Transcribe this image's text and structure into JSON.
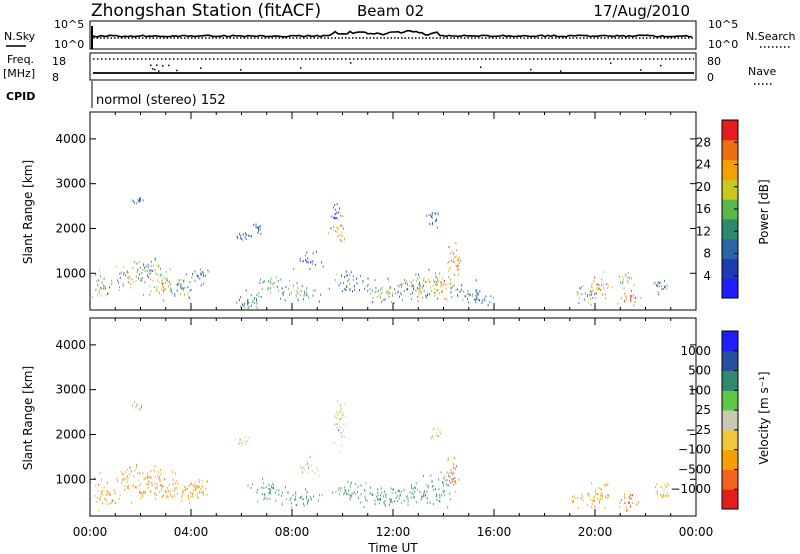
{
  "header": {
    "station": "Zhongshan Station (fitACF)",
    "beam": "Beam 02",
    "date": "17/Aug/2010"
  },
  "strips": {
    "nsky_label": "N.Sky",
    "nsky_top": "10^5",
    "nsky_bottom": "10^0",
    "nsearch_label": "N.Search",
    "nsearch_top": "10^5",
    "nsearch_bottom": "10^0",
    "freq_label": "Freq.",
    "freq_unit": "[MHz]",
    "freq_top": "18",
    "freq_bottom": "8",
    "nave_label": "Nave",
    "nave_top": "80",
    "nave_bottom": "0",
    "cpid_label": "CPID",
    "cpid_text": "normol (stereo) 152"
  },
  "colors": {
    "power": [
      "#1e1eff",
      "#1e3cb4",
      "#2c64a8",
      "#2e8a6e",
      "#58b84a",
      "#c8c81e",
      "#f5a000",
      "#ee6e14",
      "#e41e1e"
    ],
    "velocity": [
      "#e41e1e",
      "#f0641e",
      "#f5a000",
      "#f0c83c",
      "#c8c8b4",
      "#5ec846",
      "#2e8a6e",
      "#2850a0",
      "#1e1eff"
    ]
  },
  "chart_data": [
    {
      "type": "heatmap",
      "name": "power",
      "xlabel": "",
      "ylabel": "Slant Range [km]",
      "yticks": [
        "1000",
        "2000",
        "3000",
        "4000"
      ],
      "ylim": [
        180,
        4600
      ],
      "xlim": [
        0,
        24
      ],
      "colorbar_label": "Power [dB]",
      "colorbar_ticks": [
        "4",
        "8",
        "12",
        "16",
        "20",
        "24",
        "28"
      ],
      "clim": [
        0,
        32
      ],
      "blobs": [
        {
          "t": 0.5,
          "r": 650,
          "dt": 0.4,
          "dr": 250,
          "v": 14
        },
        {
          "t": 1.6,
          "r": 900,
          "dt": 0.6,
          "dr": 300,
          "v": 16
        },
        {
          "t": 2.3,
          "r": 1100,
          "dt": 0.5,
          "dr": 250,
          "v": 10
        },
        {
          "t": 2.8,
          "r": 850,
          "dt": 0.5,
          "dr": 350,
          "v": 20
        },
        {
          "t": 3.6,
          "r": 650,
          "dt": 0.7,
          "dr": 250,
          "v": 12
        },
        {
          "t": 4.3,
          "r": 900,
          "dt": 0.4,
          "dr": 200,
          "v": 8
        },
        {
          "t": 1.9,
          "r": 2600,
          "dt": 0.2,
          "dr": 100,
          "v": 6
        },
        {
          "t": 6.2,
          "r": 350,
          "dt": 0.7,
          "dr": 180,
          "v": 10
        },
        {
          "t": 6.0,
          "r": 1800,
          "dt": 0.3,
          "dr": 100,
          "v": 6
        },
        {
          "t": 6.6,
          "r": 2000,
          "dt": 0.2,
          "dr": 150,
          "v": 8
        },
        {
          "t": 7.2,
          "r": 700,
          "dt": 0.6,
          "dr": 200,
          "v": 14
        },
        {
          "t": 8.3,
          "r": 550,
          "dt": 0.8,
          "dr": 200,
          "v": 12
        },
        {
          "t": 8.7,
          "r": 1250,
          "dt": 0.5,
          "dr": 150,
          "v": 6
        },
        {
          "t": 9.8,
          "r": 1950,
          "dt": 0.3,
          "dr": 300,
          "v": 20
        },
        {
          "t": 9.7,
          "r": 2400,
          "dt": 0.15,
          "dr": 200,
          "v": 6
        },
        {
          "t": 10.3,
          "r": 800,
          "dt": 0.7,
          "dr": 250,
          "v": 10
        },
        {
          "t": 11.5,
          "r": 550,
          "dt": 0.9,
          "dr": 250,
          "v": 14
        },
        {
          "t": 12.6,
          "r": 650,
          "dt": 0.6,
          "dr": 250,
          "v": 12
        },
        {
          "t": 13.2,
          "r": 700,
          "dt": 0.5,
          "dr": 300,
          "v": 16
        },
        {
          "t": 13.9,
          "r": 700,
          "dt": 0.5,
          "dr": 350,
          "v": 22
        },
        {
          "t": 14.4,
          "r": 1200,
          "dt": 0.3,
          "dr": 400,
          "v": 24
        },
        {
          "t": 14.8,
          "r": 550,
          "dt": 0.6,
          "dr": 200,
          "v": 10
        },
        {
          "t": 13.6,
          "r": 2200,
          "dt": 0.25,
          "dr": 200,
          "v": 6
        },
        {
          "t": 15.5,
          "r": 450,
          "dt": 0.5,
          "dr": 150,
          "v": 8
        },
        {
          "t": 19.6,
          "r": 450,
          "dt": 0.5,
          "dr": 200,
          "v": 16
        },
        {
          "t": 20.2,
          "r": 650,
          "dt": 0.5,
          "dr": 250,
          "v": 24
        },
        {
          "t": 21.3,
          "r": 450,
          "dt": 0.4,
          "dr": 200,
          "v": 28
        },
        {
          "t": 21.2,
          "r": 850,
          "dt": 0.3,
          "dr": 150,
          "v": 18
        },
        {
          "t": 22.6,
          "r": 700,
          "dt": 0.3,
          "dr": 200,
          "v": 12
        }
      ]
    },
    {
      "type": "heatmap",
      "name": "velocity",
      "xlabel": "Time UT",
      "ylabel": "Slant Range [km]",
      "yticks": [
        "1000",
        "2000",
        "3000",
        "4000"
      ],
      "xticks": [
        "00:00",
        "04:00",
        "08:00",
        "12:00",
        "16:00",
        "20:00",
        "00:00"
      ],
      "ylim": [
        180,
        4600
      ],
      "xlim": [
        0,
        24
      ],
      "colorbar_label": "Velocity [m s⁻¹]",
      "colorbar_ticks": [
        "1000",
        "500",
        "100",
        "25",
        "−25",
        "−100",
        "−500",
        "−1000"
      ],
      "blobs": [
        {
          "t": 0.6,
          "r": 650,
          "dt": 0.6,
          "dr": 300,
          "v": -400
        },
        {
          "t": 1.7,
          "r": 900,
          "dt": 0.8,
          "dr": 350,
          "v": -300
        },
        {
          "t": 2.8,
          "r": 850,
          "dt": 0.8,
          "dr": 400,
          "v": -400
        },
        {
          "t": 3.8,
          "r": 650,
          "dt": 0.8,
          "dr": 250,
          "v": -300
        },
        {
          "t": 4.4,
          "r": 800,
          "dt": 0.4,
          "dr": 200,
          "v": -200
        },
        {
          "t": 1.9,
          "r": 2600,
          "dt": 0.2,
          "dr": 100,
          "v": 0
        },
        {
          "t": 6.0,
          "r": 1800,
          "dt": 0.3,
          "dr": 100,
          "v": 0
        },
        {
          "t": 7.1,
          "r": 700,
          "dt": 0.7,
          "dr": 250,
          "v": 200
        },
        {
          "t": 8.3,
          "r": 550,
          "dt": 0.9,
          "dr": 200,
          "v": 150
        },
        {
          "t": 8.6,
          "r": 1250,
          "dt": 0.4,
          "dr": 150,
          "v": 0
        },
        {
          "t": 9.9,
          "r": 2200,
          "dt": 0.3,
          "dr": 500,
          "v": 0
        },
        {
          "t": 10.4,
          "r": 700,
          "dt": 0.8,
          "dr": 200,
          "v": 200
        },
        {
          "t": 11.6,
          "r": 550,
          "dt": 1.0,
          "dr": 250,
          "v": 300
        },
        {
          "t": 12.8,
          "r": 600,
          "dt": 0.7,
          "dr": 250,
          "v": 250
        },
        {
          "t": 13.8,
          "r": 750,
          "dt": 0.6,
          "dr": 350,
          "v": 200
        },
        {
          "t": 14.3,
          "r": 1100,
          "dt": 0.3,
          "dr": 400,
          "v": -700
        },
        {
          "t": 13.7,
          "r": 2000,
          "dt": 0.25,
          "dr": 150,
          "v": 0
        },
        {
          "t": 19.8,
          "r": 500,
          "dt": 0.7,
          "dr": 200,
          "v": -300
        },
        {
          "t": 20.3,
          "r": 700,
          "dt": 0.4,
          "dr": 200,
          "v": -400
        },
        {
          "t": 21.3,
          "r": 500,
          "dt": 0.4,
          "dr": 200,
          "v": -700
        },
        {
          "t": 22.7,
          "r": 700,
          "dt": 0.3,
          "dr": 200,
          "v": -300
        }
      ]
    }
  ]
}
